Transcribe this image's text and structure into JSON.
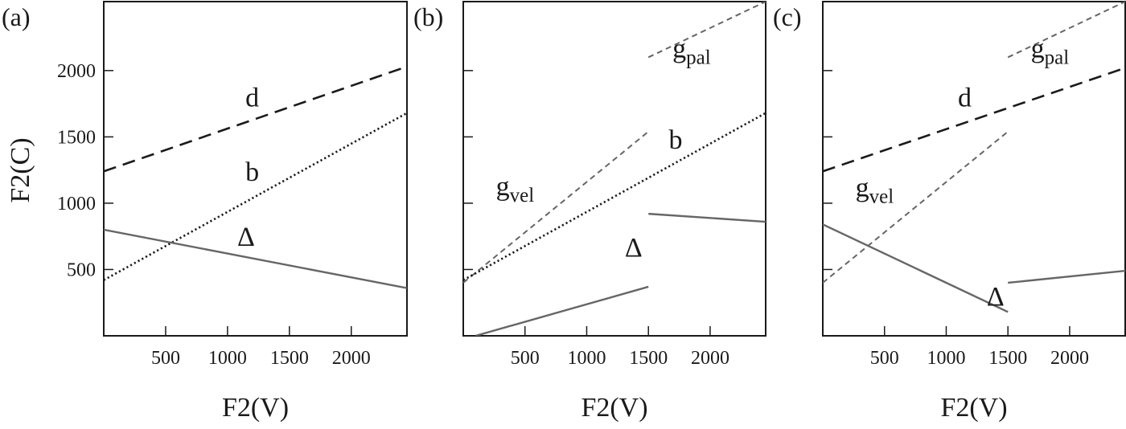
{
  "chart_data": [
    {
      "type": "line",
      "panel_label": "(a)",
      "xlabel": "F2(V)",
      "ylabel": "F2(C)",
      "xlim": [
        0,
        2450
      ],
      "ylim": [
        0,
        2520
      ],
      "xticks": [
        500,
        1000,
        1500,
        2000
      ],
      "yticks": [
        500,
        1000,
        1500,
        2000
      ],
      "series": [
        {
          "id": "d",
          "style": "dashed",
          "color": "#1a1a1a",
          "segments": [
            [
              [
                0,
                1240
              ],
              [
                2450,
                2030
              ]
            ]
          ]
        },
        {
          "id": "b",
          "style": "dotted",
          "color": "#1a1a1a",
          "segments": [
            [
              [
                0,
                420
              ],
              [
                2450,
                1680
              ]
            ]
          ]
        },
        {
          "id": "delta",
          "style": "solid",
          "color": "#666666",
          "segments": [
            [
              [
                0,
                800
              ],
              [
                2450,
                360
              ]
            ]
          ]
        }
      ],
      "annotations": [
        {
          "text": "d",
          "sub": "",
          "x": 1200,
          "y": 1730
        },
        {
          "text": "b",
          "sub": "",
          "x": 1200,
          "y": 1170
        },
        {
          "text": "Δ",
          "sub": "",
          "x": 1150,
          "y": 680
        }
      ]
    },
    {
      "type": "line",
      "panel_label": "(b)",
      "xlabel": "F2(V)",
      "ylabel": "",
      "xlim": [
        0,
        2450
      ],
      "ylim": [
        0,
        2520
      ],
      "xticks": [
        500,
        1000,
        1500,
        2000
      ],
      "yticks": [
        500,
        1000,
        1500,
        2000
      ],
      "series": [
        {
          "id": "g_pal",
          "style": "short-dashed",
          "color": "#666666",
          "segments": [
            [
              [
                1500,
                2100
              ],
              [
                2450,
                2520
              ]
            ]
          ]
        },
        {
          "id": "g_vel",
          "style": "short-dashed",
          "color": "#666666",
          "segments": [
            [
              [
                0,
                400
              ],
              [
                1500,
                1540
              ]
            ]
          ]
        },
        {
          "id": "b",
          "style": "dotted",
          "color": "#1a1a1a",
          "segments": [
            [
              [
                0,
                420
              ],
              [
                2450,
                1680
              ]
            ]
          ]
        },
        {
          "id": "delta",
          "style": "solid",
          "color": "#666666",
          "segments": [
            [
              [
                100,
                0
              ],
              [
                1500,
                370
              ]
            ],
            [
              [
                1500,
                920
              ],
              [
                2450,
                860
              ]
            ]
          ]
        }
      ],
      "annotations": [
        {
          "text": "g",
          "sub": "pal",
          "x": 1850,
          "y": 2100
        },
        {
          "text": "g",
          "sub": "vel",
          "x": 420,
          "y": 1060
        },
        {
          "text": "b",
          "sub": "",
          "x": 1720,
          "y": 1410
        },
        {
          "text": "Δ",
          "sub": "",
          "x": 1380,
          "y": 600
        }
      ]
    },
    {
      "type": "line",
      "panel_label": "(c)",
      "xlabel": "F2(V)",
      "ylabel": "",
      "xlim": [
        0,
        2450
      ],
      "ylim": [
        0,
        2520
      ],
      "xticks": [
        500,
        1000,
        1500,
        2000
      ],
      "yticks": [
        500,
        1000,
        1500,
        2000
      ],
      "series": [
        {
          "id": "g_pal",
          "style": "short-dashed",
          "color": "#666666",
          "segments": [
            [
              [
                1500,
                2100
              ],
              [
                2450,
                2520
              ]
            ]
          ]
        },
        {
          "id": "d",
          "style": "dashed",
          "color": "#1a1a1a",
          "segments": [
            [
              [
                0,
                1240
              ],
              [
                2450,
                2020
              ]
            ]
          ]
        },
        {
          "id": "g_vel",
          "style": "short-dashed",
          "color": "#666666",
          "segments": [
            [
              [
                0,
                400
              ],
              [
                1500,
                1540
              ]
            ]
          ]
        },
        {
          "id": "delta",
          "style": "solid",
          "color": "#666666",
          "segments": [
            [
              [
                0,
                840
              ],
              [
                1500,
                180
              ]
            ],
            [
              [
                1500,
                400
              ],
              [
                2450,
                490
              ]
            ]
          ]
        }
      ],
      "annotations": [
        {
          "text": "g",
          "sub": "pal",
          "x": 1840,
          "y": 2100
        },
        {
          "text": "d",
          "sub": "",
          "x": 1150,
          "y": 1730
        },
        {
          "text": "g",
          "sub": "vel",
          "x": 420,
          "y": 1050
        },
        {
          "text": "Δ",
          "sub": "",
          "x": 1400,
          "y": 230
        }
      ]
    }
  ]
}
